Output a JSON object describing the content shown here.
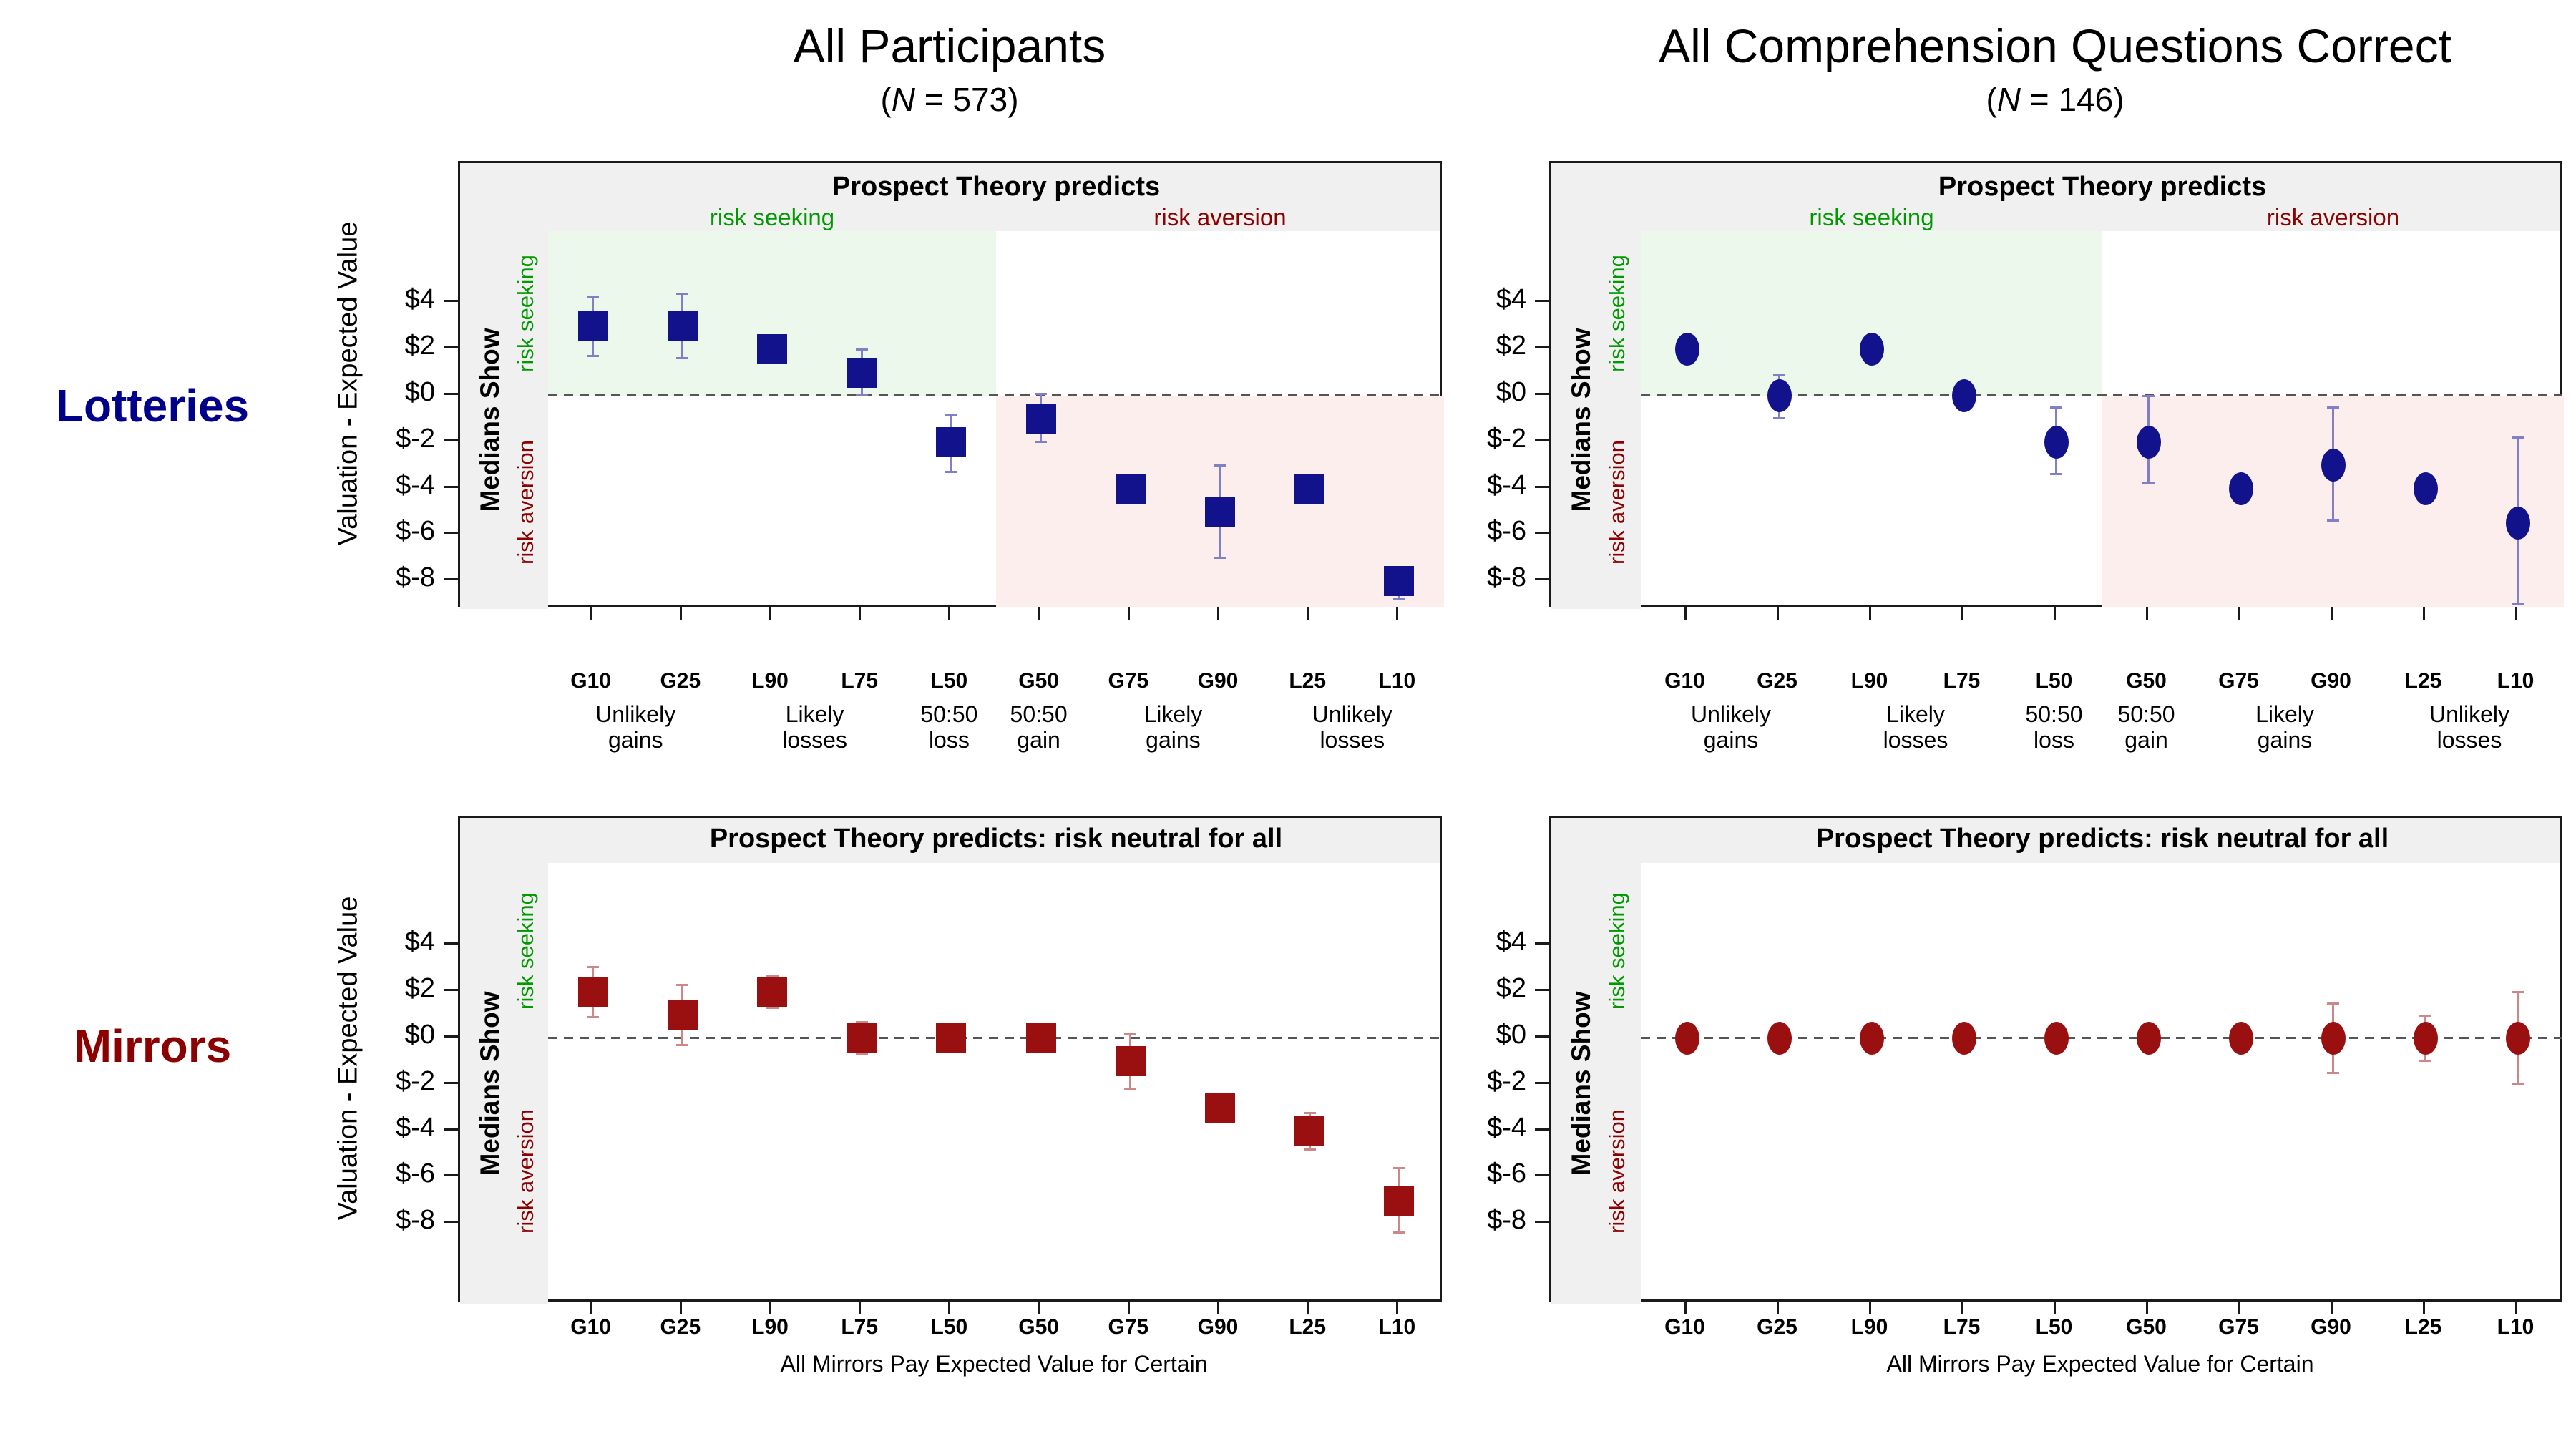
{
  "figure": {
    "columns": [
      {
        "title": "All Participants",
        "n_open": "(",
        "n_var": "N",
        "n_eq": " = ",
        "n_value": "573",
        "n_close": ")"
      },
      {
        "title": "All Comprehension Questions Correct",
        "n_open": "(",
        "n_var": "N",
        "n_eq": " = ",
        "n_value": "146",
        "n_close": ")"
      }
    ],
    "rows": [
      {
        "label": "Lotteries"
      },
      {
        "label": "Mirrors"
      }
    ],
    "y_axis_title": "Valuation - Expected Value",
    "y_tick_labels": [
      "$4",
      "$2",
      "$0",
      "$-2",
      "$-4",
      "$-6",
      "$-8"
    ],
    "y_tick_values": [
      4,
      2,
      0,
      -2,
      -4,
      -6,
      -8
    ],
    "strip": {
      "main": "Medians Show",
      "seeking": "risk seeking",
      "aversion": "risk aversion"
    },
    "lotteries_header": {
      "title": "Prospect Theory predicts",
      "left": "risk seeking",
      "right": "risk aversion"
    },
    "mirrors_header": {
      "title": "Prospect Theory predicts: risk neutral for all"
    },
    "mirrors_x_axis_title": "All Mirrors Pay Expected Value for Certain",
    "x_group_labels": [
      {
        "line1": "Unlikely",
        "line2": "gains",
        "slots": [
          0,
          1
        ]
      },
      {
        "line1": "Likely",
        "line2": "losses",
        "slots": [
          2,
          3
        ]
      },
      {
        "line1": "50:50",
        "line2": "loss",
        "slots": [
          4,
          4
        ]
      },
      {
        "line1": "50:50",
        "line2": "gain",
        "slots": [
          5,
          5
        ]
      },
      {
        "line1": "Likely",
        "line2": "gains",
        "slots": [
          6,
          7
        ]
      },
      {
        "line1": "Unlikely",
        "line2": "losses",
        "slots": [
          8,
          9
        ]
      }
    ],
    "colors": {
      "navy": "#12128c",
      "navy_err": "#8080c8",
      "darkred": "#9a1010",
      "darkred_err": "#cc8888",
      "green_text": "#009900",
      "darkred_text": "#8b0000",
      "green_bg": "#ecf8ec",
      "pink_bg": "#fdeeee",
      "band_bg": "#f0f0f0",
      "lotteries_label": "#00008b",
      "mirrors_label": "#8b0000"
    }
  },
  "chart_data": [
    {
      "id": "lotteries-all-participants",
      "type": "scatter",
      "marker": "square",
      "row": "Lotteries",
      "column": "All Participants",
      "title": "Prospect Theory predicts",
      "categories": [
        "G10",
        "G25",
        "L90",
        "L75",
        "L50",
        "G50",
        "G75",
        "G90",
        "L25",
        "L10"
      ],
      "values": [
        3,
        3,
        2,
        1,
        -2,
        -1,
        -4,
        -5,
        -4,
        -8
      ],
      "ci_low": [
        1.7,
        1.6,
        1.5,
        0.0,
        -3.3,
        -2.0,
        -4.4,
        -7.0,
        -4.4,
        -8.8
      ],
      "ci_high": [
        4.3,
        4.4,
        2.4,
        2.0,
        -0.8,
        0.1,
        -3.6,
        -3.0,
        -3.6,
        -7.4
      ],
      "ylabel": "Valuation - Expected Value",
      "ylim": [
        -10,
        6
      ],
      "yticks": [
        4,
        2,
        0,
        -2,
        -4,
        -6,
        -8
      ],
      "grid": false,
      "zero_line": "dashed"
    },
    {
      "id": "lotteries-comprehension-correct",
      "type": "scatter",
      "marker": "circle",
      "row": "Lotteries",
      "column": "All Comprehension Questions Correct",
      "title": "Prospect Theory predicts",
      "categories": [
        "G10",
        "G25",
        "L90",
        "L75",
        "L50",
        "G50",
        "G75",
        "G90",
        "L25",
        "L10"
      ],
      "values": [
        2,
        0,
        2,
        0,
        -2,
        -2,
        -4,
        -3,
        -4,
        -5.5
      ],
      "ci_low": [
        1.4,
        -1.0,
        1.5,
        -0.4,
        -3.4,
        -3.8,
        -4.4,
        -5.4,
        -4.4,
        -9.0
      ],
      "ci_high": [
        2.6,
        0.9,
        2.5,
        0.4,
        -0.5,
        0.0,
        -3.6,
        -0.5,
        -3.6,
        -1.8
      ],
      "ylabel": "Valuation - Expected Value",
      "ylim": [
        -10,
        6
      ],
      "yticks": [
        4,
        2,
        0,
        -2,
        -4,
        -6,
        -8
      ],
      "grid": false,
      "zero_line": "dashed"
    },
    {
      "id": "mirrors-all-participants",
      "type": "scatter",
      "marker": "square",
      "row": "Mirrors",
      "column": "All Participants",
      "title": "Prospect Theory predicts: risk neutral for all",
      "categories": [
        "G10",
        "G25",
        "L90",
        "L75",
        "L50",
        "G50",
        "G75",
        "G90",
        "L25",
        "L10"
      ],
      "values": [
        2,
        1,
        2,
        0,
        0,
        0,
        -1,
        -3,
        -4,
        -7
      ],
      "ci_low": [
        0.9,
        -0.3,
        1.3,
        -0.7,
        -0.4,
        -0.4,
        -2.2,
        -3.4,
        -4.8,
        -8.4
      ],
      "ci_high": [
        3.1,
        2.3,
        2.7,
        0.7,
        0.4,
        0.4,
        0.2,
        -2.6,
        -3.2,
        -5.6
      ],
      "ylabel": "Valuation - Expected Value",
      "xlabel": "All Mirrors Pay Expected Value for Certain",
      "ylim": [
        -10,
        6
      ],
      "yticks": [
        4,
        2,
        0,
        -2,
        -4,
        -6,
        -8
      ],
      "grid": false,
      "zero_line": "dashed"
    },
    {
      "id": "mirrors-comprehension-correct",
      "type": "scatter",
      "marker": "circle",
      "row": "Mirrors",
      "column": "All Comprehension Questions Correct",
      "title": "Prospect Theory predicts: risk neutral for all",
      "categories": [
        "G10",
        "G25",
        "L90",
        "L75",
        "L50",
        "G50",
        "G75",
        "G90",
        "L25",
        "L10"
      ],
      "values": [
        0,
        0,
        0,
        0,
        0,
        0,
        0,
        0,
        0,
        0
      ],
      "ci_low": [
        -0.4,
        -0.5,
        -0.4,
        -0.4,
        -0.4,
        -0.4,
        -0.4,
        -1.5,
        -1.0,
        -2.0
      ],
      "ci_high": [
        0.4,
        0.5,
        0.4,
        0.4,
        0.4,
        0.4,
        0.4,
        1.5,
        1.0,
        2.0
      ],
      "ylabel": "Valuation - Expected Value",
      "xlabel": "All Mirrors Pay Expected Value for Certain",
      "ylim": [
        -10,
        6
      ],
      "yticks": [
        4,
        2,
        0,
        -2,
        -4,
        -6,
        -8
      ],
      "grid": false,
      "zero_line": "dashed"
    }
  ]
}
